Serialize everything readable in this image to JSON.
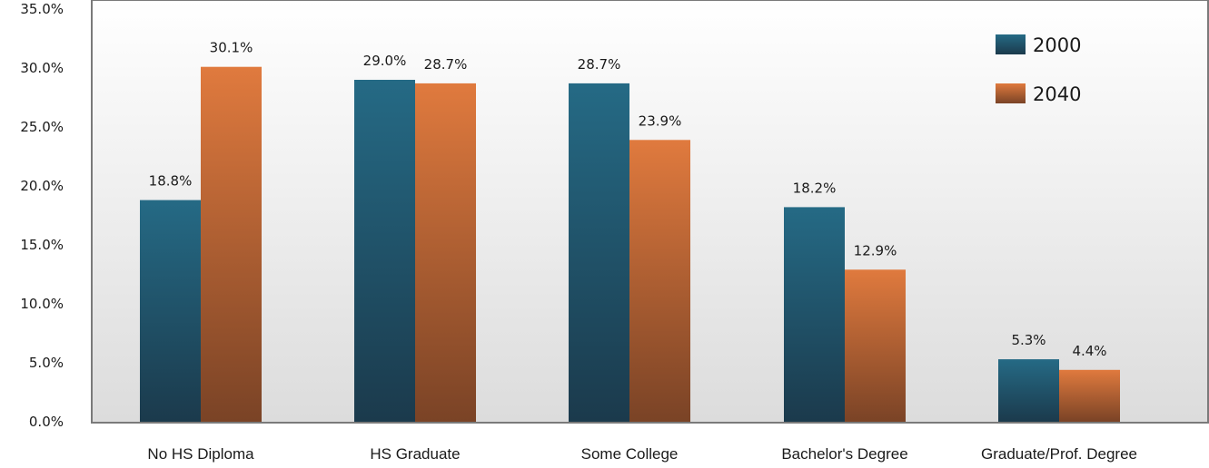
{
  "chart_data": {
    "type": "bar",
    "categories": [
      "No HS Diploma",
      "HS Graduate",
      "Some College",
      "Bachelor's Degree",
      "Graduate/Prof. Degree"
    ],
    "series": [
      {
        "name": "2000",
        "values": [
          18.8,
          29.0,
          28.7,
          18.2,
          5.3
        ],
        "labels": [
          "18.8%",
          "29.0%",
          "28.7%",
          "18.2%",
          "5.3%"
        ]
      },
      {
        "name": "2040",
        "values": [
          30.1,
          28.7,
          23.9,
          12.9,
          4.4
        ],
        "labels": [
          "30.1%",
          "28.7%",
          "23.9%",
          "12.9%",
          "4.4%"
        ]
      }
    ],
    "ylim": [
      0,
      35
    ],
    "yticks": [
      "0.0%",
      "5.0%",
      "10.0%",
      "15.0%",
      "20.0%",
      "25.0%",
      "30.0%",
      "35.0%"
    ],
    "legend": "top-right",
    "grid": false
  },
  "colors": {
    "series_2000": "#256a85",
    "series_2000_dark": "#1b3a4c",
    "series_2040": "#e07a3e",
    "series_2040_dark": "#7a4326"
  }
}
